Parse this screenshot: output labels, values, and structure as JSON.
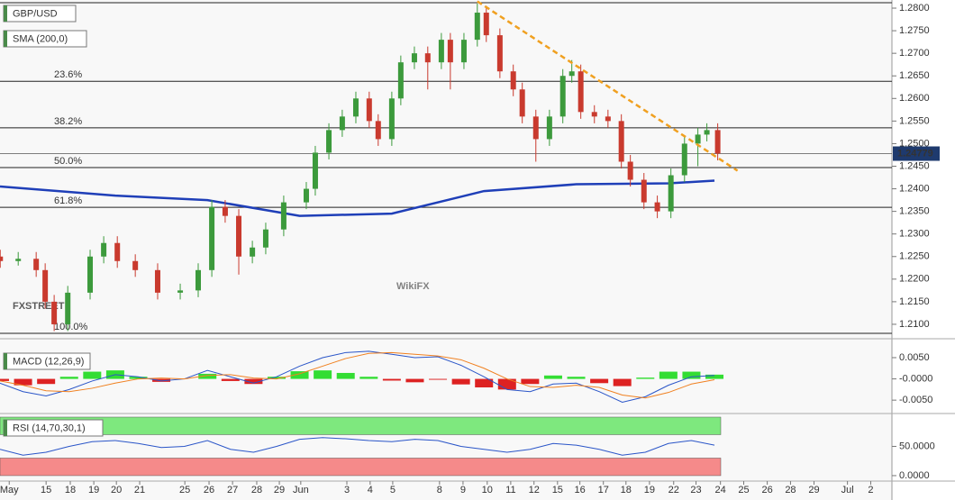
{
  "chart_data": [
    {
      "type": "candlestick",
      "title": "GBP/USD",
      "subtitle": "SMA (200,0)",
      "xlim": [
        -1,
        37.7
      ],
      "ylim": [
        1.2076,
        1.2818
      ],
      "xticks": [
        {
          "value": -0.6,
          "label": "May"
        },
        {
          "value": 1,
          "label": "15"
        },
        {
          "value": 2.05,
          "label": "18"
        },
        {
          "value": 3.07,
          "label": "19"
        },
        {
          "value": 4.05,
          "label": "20"
        },
        {
          "value": 5.06,
          "label": "21"
        },
        {
          "value": 7.02,
          "label": "25"
        },
        {
          "value": 8.07,
          "label": "26"
        },
        {
          "value": 9.09,
          "label": "27"
        },
        {
          "value": 10.14,
          "label": "28"
        },
        {
          "value": 11.12,
          "label": "29"
        },
        {
          "value": 12.05,
          "label": "Jun"
        },
        {
          "value": 14.05,
          "label": "3"
        },
        {
          "value": 15.06,
          "label": "4"
        },
        {
          "value": 16.04,
          "label": "5"
        },
        {
          "value": 18.07,
          "label": "8"
        },
        {
          "value": 19.09,
          "label": "9"
        },
        {
          "value": 20.14,
          "label": "10"
        },
        {
          "value": 21.16,
          "label": "11"
        },
        {
          "value": 22.17,
          "label": "12"
        },
        {
          "value": 23.19,
          "label": "15"
        },
        {
          "value": 24.16,
          "label": "16"
        },
        {
          "value": 25.18,
          "label": "17"
        },
        {
          "value": 26.16,
          "label": "18"
        },
        {
          "value": 27.18,
          "label": "19"
        },
        {
          "value": 28.23,
          "label": "22"
        },
        {
          "value": 29.2,
          "label": "23"
        },
        {
          "value": 30.26,
          "label": "24"
        },
        {
          "value": 31.27,
          "label": "25"
        },
        {
          "value": 32.29,
          "label": "26"
        },
        {
          "value": 33.3,
          "label": "28"
        },
        {
          "value": 34.32,
          "label": "29"
        },
        {
          "value": 35.77,
          "label": "Jul"
        },
        {
          "value": 36.78,
          "label": "2"
        }
      ],
      "yticks": [
        {
          "value": 1.21,
          "label": "1.2100"
        },
        {
          "value": 1.215,
          "label": "1.2150"
        },
        {
          "value": 1.22,
          "label": "1.2200"
        },
        {
          "value": 1.225,
          "label": "1.2250"
        },
        {
          "value": 1.23,
          "label": "1.2300"
        },
        {
          "value": 1.235,
          "label": "1.2350"
        },
        {
          "value": 1.24,
          "label": "1.2400"
        },
        {
          "value": 1.245,
          "label": "1.2450"
        },
        {
          "value": 1.25,
          "label": "1.2500"
        },
        {
          "value": 1.255,
          "label": "1.2550"
        },
        {
          "value": 1.26,
          "label": "1.2600"
        },
        {
          "value": 1.265,
          "label": "1.2650"
        },
        {
          "value": 1.27,
          "label": "1.2700"
        },
        {
          "value": 1.275,
          "label": "1.2750"
        },
        {
          "value": 1.28,
          "label": "1.2800"
        }
      ],
      "x": [
        -0.99,
        -0.21,
        0.57,
        0.96,
        1.35,
        1.94,
        2.91,
        3.5,
        4.09,
        4.87,
        5.84,
        6.82,
        7.6,
        8.19,
        8.77,
        9.36,
        9.95,
        10.53,
        11.31,
        12.29,
        12.68,
        13.27,
        13.85,
        14.44,
        15.02,
        15.41,
        16.0,
        16.39,
        16.98,
        17.56,
        18.15,
        18.54,
        19.13,
        19.71,
        20.1,
        20.69,
        21.27,
        21.66,
        22.25,
        22.84,
        23.42,
        23.81,
        24.2,
        24.79,
        25.38,
        25.96,
        26.35,
        26.94,
        27.52,
        28.11,
        28.7,
        29.28,
        29.67,
        30.14
      ],
      "open": [
        1.225,
        1.224,
        1.2245,
        1.222,
        1.215,
        1.21,
        1.217,
        1.225,
        1.228,
        1.224,
        1.222,
        1.217,
        1.2175,
        1.222,
        1.236,
        1.234,
        1.225,
        1.227,
        1.231,
        1.237,
        1.24,
        1.248,
        1.253,
        1.256,
        1.26,
        1.255,
        1.251,
        1.26,
        1.268,
        1.27,
        1.268,
        1.273,
        1.268,
        1.273,
        1.279,
        1.274,
        1.266,
        1.262,
        1.256,
        1.251,
        1.256,
        1.265,
        1.266,
        1.257,
        1.256,
        1.255,
        1.246,
        1.242,
        1.237,
        1.235,
        1.243,
        1.25,
        1.252,
        1.253
      ],
      "high": [
        1.2265,
        1.226,
        1.226,
        1.2235,
        1.2165,
        1.2185,
        1.2265,
        1.2295,
        1.2295,
        1.2255,
        1.2235,
        1.219,
        1.2235,
        1.2375,
        1.2375,
        1.2355,
        1.2285,
        1.2325,
        1.2385,
        1.2415,
        1.2495,
        1.2545,
        1.2575,
        1.2615,
        1.2615,
        1.2565,
        1.2615,
        1.2695,
        1.2715,
        1.2715,
        1.2745,
        1.2745,
        1.2745,
        1.281,
        1.2805,
        1.2755,
        1.2675,
        1.2635,
        1.2575,
        1.2575,
        1.2665,
        1.2685,
        1.2675,
        1.2585,
        1.2575,
        1.2565,
        1.2475,
        1.2435,
        1.2385,
        1.2445,
        1.2515,
        1.2535,
        1.2545,
        1.2545
      ],
      "low": [
        1.2225,
        1.223,
        1.2205,
        1.2135,
        1.2085,
        1.2085,
        1.2155,
        1.2235,
        1.2225,
        1.2205,
        1.2155,
        1.2155,
        1.216,
        1.2205,
        1.2325,
        1.221,
        1.2235,
        1.2255,
        1.2295,
        1.2355,
        1.2385,
        1.2465,
        1.2515,
        1.2545,
        1.2535,
        1.2495,
        1.2495,
        1.2585,
        1.2665,
        1.262,
        1.2665,
        1.262,
        1.2665,
        1.2715,
        1.2725,
        1.2645,
        1.2605,
        1.2545,
        1.246,
        1.2495,
        1.2545,
        1.2635,
        1.2555,
        1.2545,
        1.2535,
        1.2445,
        1.2405,
        1.2355,
        1.2335,
        1.2335,
        1.2415,
        1.245,
        1.2505,
        1.2463
      ],
      "close": [
        1.224,
        1.2245,
        1.222,
        1.215,
        1.21,
        1.217,
        1.225,
        1.228,
        1.224,
        1.222,
        1.217,
        1.2175,
        1.222,
        1.236,
        1.234,
        1.225,
        1.227,
        1.231,
        1.237,
        1.24,
        1.248,
        1.253,
        1.256,
        1.26,
        1.255,
        1.251,
        1.26,
        1.268,
        1.27,
        1.268,
        1.273,
        1.268,
        1.273,
        1.279,
        1.274,
        1.266,
        1.262,
        1.256,
        1.251,
        1.256,
        1.265,
        1.266,
        1.257,
        1.256,
        1.255,
        1.246,
        1.242,
        1.237,
        1.235,
        1.243,
        1.25,
        1.252,
        1.253,
        1.2478
      ],
      "up_color": "#3c9a3c",
      "down_color": "#c93a2e",
      "sma": {
        "name": "SMA (200,0)",
        "color": "#1f3fb8",
        "x": [
          -1,
          4,
          8,
          12,
          16,
          20,
          24,
          28,
          30
        ],
        "values": [
          1.2405,
          1.2385,
          1.2375,
          1.234,
          1.2345,
          1.2395,
          1.241,
          1.2412,
          1.2418
        ]
      },
      "range_top": 1.2812,
      "fib_levels": [
        {
          "value": 1.2638,
          "label": "23.6%"
        },
        {
          "value": 1.2535,
          "label": "38.2%"
        },
        {
          "value": 1.2447,
          "label": "50.0%"
        },
        {
          "value": 1.2359,
          "label": "61.8%"
        },
        {
          "value": 1.208,
          "label": "100.0%"
        }
      ],
      "trendline": {
        "color": "#f0a020",
        "x": [
          19.71,
          31.0
        ],
        "values": [
          1.2815,
          1.244
        ]
      },
      "current_price": {
        "value": 1.24779,
        "label": "1.24779"
      },
      "watermarks": [
        "FXSTREET",
        "WikiFX"
      ]
    },
    {
      "type": "macd",
      "title": "MACD (12,26,9)",
      "xlim": [
        -1,
        37.7
      ],
      "ylim": [
        -0.0073,
        0.0086
      ],
      "yticks": [
        {
          "value": 0.005,
          "label": "0.0050"
        },
        {
          "value": 0,
          "label": "-0.0000"
        },
        {
          "value": -0.005,
          "label": "-0.0050"
        }
      ],
      "x": [
        -1,
        0,
        1,
        2,
        3,
        4,
        5,
        6,
        7,
        8,
        9,
        10,
        11,
        12,
        13,
        14,
        15,
        16,
        17,
        18,
        19,
        20,
        21,
        22,
        23,
        24,
        25,
        26,
        27,
        28,
        29,
        30
      ],
      "series": [
        {
          "name": "MACD",
          "color": "#2a55c8",
          "values": [
            -0.001,
            -0.003,
            -0.004,
            -0.0025,
            -0.0005,
            0.001,
            0.0005,
            -0.0005,
            0.0,
            0.002,
            0.0005,
            -0.001,
            0.0005,
            0.003,
            0.005,
            0.0062,
            0.0065,
            0.0058,
            0.005,
            0.0052,
            0.0032,
            0.0005,
            -0.0025,
            -0.003,
            -0.0012,
            -0.001,
            -0.003,
            -0.0055,
            -0.0042,
            -0.0015,
            0.0005,
            0.0008
          ]
        },
        {
          "name": "Signal",
          "color": "#f08020",
          "values": [
            -0.0005,
            -0.0015,
            -0.0028,
            -0.003,
            -0.0022,
            -0.001,
            0.0,
            0.0002,
            0.0,
            0.0008,
            0.001,
            0.0002,
            0.0,
            0.0012,
            0.003,
            0.0048,
            0.006,
            0.0062,
            0.0058,
            0.0054,
            0.0045,
            0.0025,
            0.0,
            -0.0018,
            -0.002,
            -0.0015,
            -0.002,
            -0.0038,
            -0.0045,
            -0.0032,
            -0.0012,
            -0.0002
          ]
        }
      ],
      "histogram": [
        -0.0005,
        -0.0015,
        -0.0012,
        0.0005,
        0.0017,
        0.002,
        0.0005,
        -0.0007,
        0.0,
        0.0012,
        -0.0005,
        -0.0012,
        0.0005,
        0.0018,
        0.002,
        0.0014,
        0.0005,
        -0.0004,
        -0.0008,
        -0.0002,
        -0.0013,
        -0.002,
        -0.0025,
        -0.0012,
        0.0008,
        0.0005,
        -0.001,
        -0.0017,
        0.0003,
        0.0017,
        0.0017,
        0.001
      ],
      "up_color": "#33dd33",
      "down_color": "#dd2222"
    },
    {
      "type": "line",
      "title": "RSI (14,70,30,1)",
      "xlim": [
        -1,
        37.7
      ],
      "ylim": [
        -4.7,
        100
      ],
      "yticks": [
        {
          "value": 50,
          "label": "50.0000"
        },
        {
          "value": 0,
          "label": "0.0000"
        }
      ],
      "bands": [
        {
          "from": 70,
          "to": 100,
          "color": "#7ee87e"
        },
        {
          "from": 0,
          "to": 30,
          "color": "#f58a8a"
        }
      ],
      "x": [
        -1,
        0,
        1,
        2,
        3,
        4,
        5,
        6,
        7,
        8,
        9,
        10,
        11,
        12,
        13,
        14,
        15,
        16,
        17,
        18,
        19,
        20,
        21,
        22,
        23,
        24,
        25,
        26,
        27,
        28,
        29,
        30
      ],
      "series": [
        {
          "name": "RSI",
          "color": "#2a55c8",
          "values": [
            45,
            35,
            40,
            50,
            58,
            60,
            55,
            48,
            50,
            60,
            45,
            40,
            50,
            62,
            65,
            63,
            60,
            58,
            62,
            60,
            50,
            45,
            40,
            45,
            55,
            52,
            45,
            35,
            40,
            55,
            60,
            52
          ]
        }
      ]
    }
  ]
}
